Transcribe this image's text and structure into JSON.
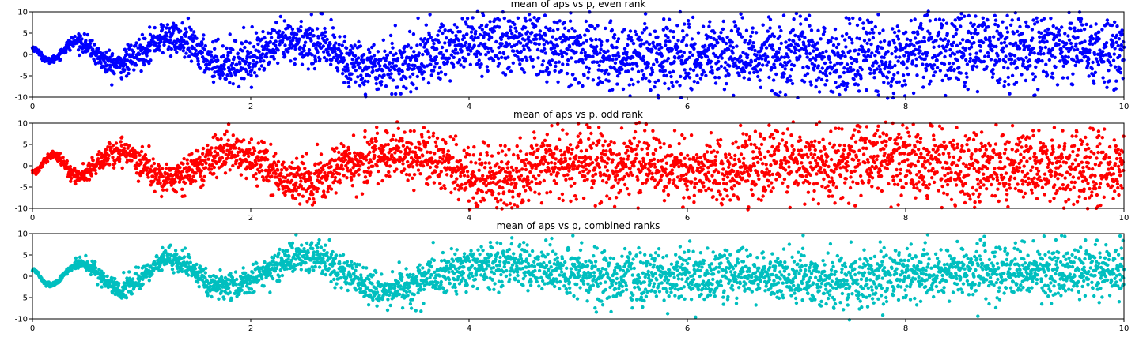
{
  "chart_data": [
    {
      "type": "scatter",
      "title": "mean of aps vs p, even rank",
      "xlim": [
        0,
        10
      ],
      "ylim": [
        -10,
        10
      ],
      "xticks": [
        0,
        2,
        4,
        6,
        8,
        10
      ],
      "yticks": [
        10,
        5,
        0,
        -5,
        -10
      ],
      "color": "#0000ff",
      "series": [
        {
          "points_description": "approx. one point per 0.003 in x from 0 to 10",
          "mean_curve": [
            [
              0.0,
              1.5
            ],
            [
              0.15,
              -1.5
            ],
            [
              0.4,
              3.0
            ],
            [
              0.75,
              -2.5
            ],
            [
              1.25,
              4.0
            ],
            [
              1.75,
              -2.0
            ],
            [
              2.45,
              3.0
            ],
            [
              3.15,
              -3.0
            ],
            [
              4.15,
              3.0
            ],
            [
              5.5,
              -0.5
            ],
            [
              6.5,
              0.5
            ],
            [
              7.5,
              -1.0
            ],
            [
              8.5,
              1.5
            ],
            [
              10.0,
              1.0
            ]
          ],
          "spread_curve": [
            [
              0.0,
              0.3
            ],
            [
              1.0,
              1.8
            ],
            [
              2.0,
              2.5
            ],
            [
              3.0,
              3.0
            ],
            [
              4.0,
              3.8
            ],
            [
              6.0,
              4.2
            ],
            [
              8.0,
              4.5
            ],
            [
              10.0,
              4.5
            ]
          ]
        }
      ]
    },
    {
      "type": "scatter",
      "title": "mean of aps vs p, odd rank",
      "xlim": [
        0,
        10
      ],
      "ylim": [
        -10,
        10
      ],
      "xticks": [
        0,
        2,
        4,
        6,
        8,
        10
      ],
      "yticks": [
        10,
        5,
        0,
        -5,
        -10
      ],
      "color": "#ff0000",
      "series": [
        {
          "points_description": "approx. one point per 0.003 in x from 0 to 10",
          "mean_curve": [
            [
              0.0,
              -1.5
            ],
            [
              0.2,
              2.5
            ],
            [
              0.4,
              -2.5
            ],
            [
              0.8,
              3.5
            ],
            [
              1.25,
              -3.0
            ],
            [
              1.8,
              3.0
            ],
            [
              2.5,
              -3.5
            ],
            [
              3.3,
              3.0
            ],
            [
              4.2,
              -3.0
            ],
            [
              5.0,
              1.0
            ],
            [
              6.0,
              -1.0
            ],
            [
              7.5,
              1.5
            ],
            [
              9.0,
              -1.0
            ],
            [
              10.0,
              -1.0
            ]
          ],
          "spread_curve": [
            [
              0.0,
              0.4
            ],
            [
              1.0,
              1.8
            ],
            [
              2.0,
              2.4
            ],
            [
              3.0,
              3.0
            ],
            [
              4.0,
              3.6
            ],
            [
              6.0,
              4.2
            ],
            [
              8.0,
              4.5
            ],
            [
              10.0,
              4.5
            ]
          ]
        }
      ]
    },
    {
      "type": "scatter",
      "title": "mean of aps vs p, combined ranks",
      "xlim": [
        0,
        10
      ],
      "ylim": [
        -10,
        10
      ],
      "xticks": [
        0,
        2,
        4,
        6,
        8,
        10
      ],
      "yticks": [
        10,
        5,
        0,
        -5,
        -10
      ],
      "color": "#00bfbf",
      "series": [
        {
          "points_description": "approx. one point per 0.003 in x from 0 to 10",
          "mean_curve": [
            [
              0.0,
              1.5
            ],
            [
              0.15,
              -2.0
            ],
            [
              0.45,
              3.0
            ],
            [
              0.8,
              -3.0
            ],
            [
              1.25,
              4.0
            ],
            [
              1.75,
              -2.5
            ],
            [
              2.5,
              4.5
            ],
            [
              3.2,
              -3.0
            ],
            [
              4.2,
              3.0
            ],
            [
              5.5,
              -0.5
            ],
            [
              6.5,
              0.5
            ],
            [
              7.5,
              -1.0
            ],
            [
              8.5,
              1.0
            ],
            [
              10.0,
              1.5
            ]
          ],
          "spread_curve": [
            [
              0.0,
              0.2
            ],
            [
              1.0,
              1.2
            ],
            [
              2.0,
              1.6
            ],
            [
              3.0,
              2.0
            ],
            [
              4.0,
              2.6
            ],
            [
              6.0,
              3.0
            ],
            [
              8.0,
              3.2
            ],
            [
              10.0,
              3.2
            ]
          ]
        }
      ]
    }
  ]
}
